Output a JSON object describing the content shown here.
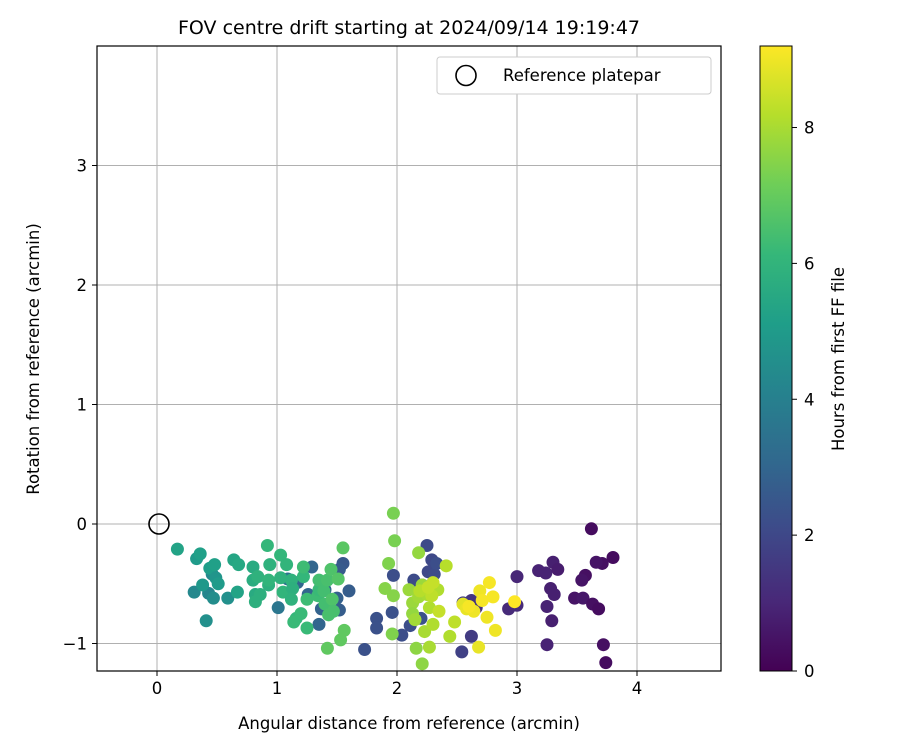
{
  "chart_data": {
    "type": "scatter",
    "title": "FOV centre drift starting at 2024/09/14 19:19:47",
    "xlabel": "Angular distance from reference (arcmin)",
    "ylabel": "Rotation from reference (arcmin)",
    "xlim": [
      -0.5,
      4.7
    ],
    "ylim": [
      -1.23,
      4.0
    ],
    "xticks": [
      0,
      1,
      2,
      3,
      4
    ],
    "yticks": [
      -1,
      0,
      1,
      2,
      3
    ],
    "grid": true,
    "legend": {
      "placement": "top-right",
      "label": "Reference platepar"
    },
    "reference_point": {
      "x": 0,
      "y": 0
    },
    "colorbar": {
      "label": "Hours from first FF file",
      "range": [
        0,
        9.2
      ],
      "ticks": [
        0,
        2,
        4,
        6,
        8
      ],
      "colormap": "viridis"
    },
    "colormap_stops": [
      "#440154",
      "#482878",
      "#3e4989",
      "#31688e",
      "#26828e",
      "#1f9e89",
      "#35b779",
      "#6ece58",
      "#b5de2b",
      "#fde725"
    ],
    "points": [
      [
        3.62,
        -0.04,
        0.3
      ],
      [
        3.8,
        -0.28,
        0.3
      ],
      [
        3.71,
        -0.33,
        0.4
      ],
      [
        3.66,
        -0.32,
        0.5
      ],
      [
        3.57,
        -0.43,
        0.4
      ],
      [
        3.54,
        -0.47,
        0.5
      ],
      [
        3.48,
        -0.62,
        0.5
      ],
      [
        3.55,
        -0.62,
        0.6
      ],
      [
        3.63,
        -0.67,
        0.4
      ],
      [
        3.68,
        -0.71,
        0.3
      ],
      [
        3.72,
        -1.01,
        0.4
      ],
      [
        3.74,
        -1.16,
        0.3
      ],
      [
        3.18,
        -0.39,
        0.9
      ],
      [
        3.24,
        -0.41,
        0.9
      ],
      [
        3.3,
        -0.32,
        0.8
      ],
      [
        3.34,
        -0.38,
        0.7
      ],
      [
        3.28,
        -0.54,
        0.8
      ],
      [
        3.31,
        -0.59,
        0.8
      ],
      [
        3.25,
        -0.69,
        0.9
      ],
      [
        3.29,
        -0.81,
        0.8
      ],
      [
        3.25,
        -1.01,
        0.9
      ],
      [
        3.0,
        -0.44,
        1.0
      ],
      [
        3.0,
        -0.68,
        1.1
      ],
      [
        2.93,
        -0.71,
        1.1
      ],
      [
        2.66,
        -0.7,
        1.3
      ],
      [
        2.62,
        -0.64,
        1.4
      ],
      [
        2.55,
        -0.66,
        1.7
      ],
      [
        2.62,
        -0.94,
        1.6
      ],
      [
        2.54,
        -1.07,
        1.8
      ],
      [
        2.29,
        -0.3,
        2.0
      ],
      [
        2.26,
        -0.4,
        2.0
      ],
      [
        2.31,
        -0.42,
        2.1
      ],
      [
        2.33,
        -0.33,
        2.2
      ],
      [
        2.21,
        -0.51,
        2.2
      ],
      [
        2.14,
        -0.47,
        2.1
      ],
      [
        2.25,
        -0.18,
        2.1
      ],
      [
        1.97,
        -0.43,
        2.2
      ],
      [
        1.96,
        -0.74,
        2.3
      ],
      [
        2.04,
        -0.93,
        2.2
      ],
      [
        1.83,
        -0.79,
        2.3
      ],
      [
        1.83,
        -0.87,
        2.3
      ],
      [
        1.73,
        -1.05,
        2.3
      ],
      [
        2.2,
        -0.79,
        2.3
      ],
      [
        2.11,
        -0.85,
        2.2
      ],
      [
        1.55,
        -0.33,
        2.5
      ],
      [
        1.52,
        -0.38,
        2.6
      ],
      [
        1.6,
        -0.56,
        2.7
      ],
      [
        1.5,
        -0.62,
        2.8
      ],
      [
        1.52,
        -0.72,
        2.7
      ],
      [
        1.37,
        -0.71,
        2.9
      ],
      [
        1.35,
        -0.84,
        3.0
      ],
      [
        1.29,
        -0.36,
        3.0
      ],
      [
        1.4,
        -0.55,
        3.1
      ],
      [
        1.26,
        -0.59,
        3.0
      ],
      [
        1.17,
        -0.49,
        3.0
      ],
      [
        1.09,
        -0.46,
        3.5
      ],
      [
        1.01,
        -0.7,
        3.6
      ],
      [
        0.43,
        -0.58,
        4.2
      ],
      [
        0.46,
        -0.42,
        4.3
      ],
      [
        0.41,
        -0.81,
        4.6
      ],
      [
        0.47,
        -0.62,
        4.5
      ],
      [
        0.31,
        -0.57,
        4.3
      ],
      [
        0.38,
        -0.51,
        4.9
      ],
      [
        0.44,
        -0.37,
        5.1
      ],
      [
        0.49,
        -0.45,
        4.8
      ],
      [
        0.48,
        -0.34,
        5.2
      ],
      [
        0.59,
        -0.62,
        4.6
      ],
      [
        0.51,
        -0.5,
        5.0
      ],
      [
        0.33,
        -0.29,
        5.0
      ],
      [
        0.36,
        -0.25,
        5.2
      ],
      [
        0.17,
        -0.21,
        5.3
      ],
      [
        0.64,
        -0.3,
        5.4
      ],
      [
        0.67,
        -0.57,
        5.3
      ],
      [
        0.68,
        -0.34,
        5.5
      ],
      [
        0.8,
        -0.36,
        5.6
      ],
      [
        0.82,
        -0.59,
        5.6
      ],
      [
        0.8,
        -0.47,
        5.7
      ],
      [
        0.82,
        -0.65,
        5.8
      ],
      [
        0.84,
        -0.44,
        5.9
      ],
      [
        0.86,
        -0.59,
        5.8
      ],
      [
        0.93,
        -0.51,
        5.8
      ],
      [
        0.93,
        -0.47,
        6.0
      ],
      [
        0.94,
        -0.34,
        5.9
      ],
      [
        0.92,
        -0.18,
        6.1
      ],
      [
        1.03,
        -0.26,
        6.1
      ],
      [
        1.03,
        -0.45,
        5.9
      ],
      [
        1.05,
        -0.57,
        6.0
      ],
      [
        1.08,
        -0.34,
        6.0
      ],
      [
        1.12,
        -0.47,
        5.9
      ],
      [
        1.13,
        -0.54,
        5.8
      ],
      [
        1.12,
        -0.63,
        5.9
      ],
      [
        1.16,
        -0.79,
        6.1
      ],
      [
        1.14,
        -0.82,
        6.2
      ],
      [
        1.2,
        -0.75,
        6.2
      ],
      [
        1.22,
        -0.44,
        6.1
      ],
      [
        1.22,
        -0.36,
        6.3
      ],
      [
        1.25,
        -0.63,
        6.3
      ],
      [
        1.25,
        -0.87,
        6.2
      ],
      [
        1.34,
        -0.6,
        6.3
      ],
      [
        1.35,
        -0.55,
        6.2
      ],
      [
        1.35,
        -0.47,
        6.4
      ],
      [
        1.39,
        -0.56,
        6.4
      ],
      [
        1.4,
        -0.67,
        6.4
      ],
      [
        1.42,
        -0.47,
        6.5
      ],
      [
        1.43,
        -0.76,
        6.5
      ],
      [
        1.46,
        -0.63,
        6.6
      ],
      [
        1.47,
        -0.73,
        6.5
      ],
      [
        1.45,
        -0.38,
        6.6
      ],
      [
        1.51,
        -0.46,
        6.7
      ],
      [
        1.56,
        -0.89,
        6.9
      ],
      [
        1.55,
        -0.2,
        6.8
      ],
      [
        1.42,
        -1.04,
        6.9
      ],
      [
        1.53,
        -0.97,
        6.9
      ],
      [
        1.97,
        0.09,
        7.3
      ],
      [
        1.98,
        -0.14,
        7.3
      ],
      [
        1.93,
        -0.33,
        7.4
      ],
      [
        1.9,
        -0.54,
        7.5
      ],
      [
        1.97,
        -0.6,
        7.5
      ],
      [
        1.96,
        -0.92,
        7.4
      ],
      [
        2.16,
        -1.04,
        7.6
      ],
      [
        2.21,
        -1.17,
        7.6
      ],
      [
        2.18,
        -0.24,
        7.7
      ],
      [
        2.1,
        -0.55,
        7.8
      ],
      [
        2.13,
        -0.66,
        7.8
      ],
      [
        2.13,
        -0.75,
        7.7
      ],
      [
        2.15,
        -0.8,
        7.9
      ],
      [
        2.18,
        -0.61,
        7.9
      ],
      [
        2.21,
        -0.51,
        7.8
      ],
      [
        2.25,
        -0.59,
        8.0
      ],
      [
        2.27,
        -0.7,
        8.1
      ],
      [
        2.23,
        -0.9,
        8.0
      ],
      [
        2.27,
        -1.03,
        8.0
      ],
      [
        2.3,
        -0.84,
        8.1
      ],
      [
        2.34,
        -0.55,
        8.1
      ],
      [
        2.41,
        -0.35,
        8.2
      ],
      [
        2.44,
        -0.94,
        8.1
      ],
      [
        2.48,
        -0.82,
        8.3
      ],
      [
        2.3,
        -0.49,
        8.4
      ],
      [
        2.35,
        -0.73,
        8.4
      ],
      [
        2.19,
        -0.56,
        8.2
      ],
      [
        2.29,
        -0.6,
        8.3
      ],
      [
        2.26,
        -0.53,
        8.4
      ],
      [
        2.55,
        -0.67,
        8.8
      ],
      [
        2.58,
        -0.71,
        8.9
      ],
      [
        2.64,
        -0.73,
        9.0
      ],
      [
        2.69,
        -0.56,
        9.0
      ],
      [
        2.71,
        -0.64,
        9.1
      ],
      [
        2.75,
        -0.78,
        9.0
      ],
      [
        2.77,
        -0.49,
        9.1
      ],
      [
        2.8,
        -0.61,
        9.1
      ],
      [
        2.82,
        -0.89,
        9.0
      ],
      [
        2.98,
        -0.65,
        9.2
      ],
      [
        2.68,
        -1.03,
        8.9
      ],
      [
        2.6,
        -0.69,
        9.1
      ]
    ]
  }
}
